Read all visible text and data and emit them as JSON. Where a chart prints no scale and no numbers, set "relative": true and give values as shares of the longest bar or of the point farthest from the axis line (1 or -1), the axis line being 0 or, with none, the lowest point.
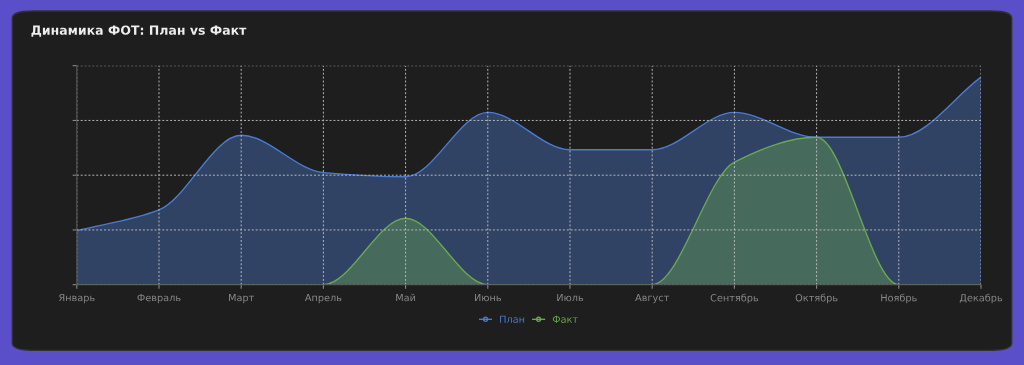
{
  "chart_data": {
    "type": "area",
    "title": "Динамика ФОТ: План vs Факт",
    "relative": true,
    "categories": [
      "Январь",
      "Февраль",
      "Март",
      "Апрель",
      "Май",
      "Июнь",
      "Июль",
      "Август",
      "Сентябрь",
      "Октябрь",
      "Ноябрь",
      "Декабрь"
    ],
    "series": [
      {
        "name": "План",
        "color": "#4a7bd0",
        "values": [
          0.26,
          0.36,
          0.72,
          0.54,
          0.52,
          0.83,
          0.65,
          0.65,
          0.83,
          0.71,
          0.71,
          1
        ]
      },
      {
        "name": "Факт",
        "color": "#6aa84f",
        "values": [
          0,
          0,
          0,
          0,
          0.32,
          0,
          0,
          0,
          0.59,
          0.71,
          0,
          0
        ]
      }
    ],
    "grid": true,
    "legend": "bottom",
    "marker": "none",
    "line_style": "solid"
  }
}
